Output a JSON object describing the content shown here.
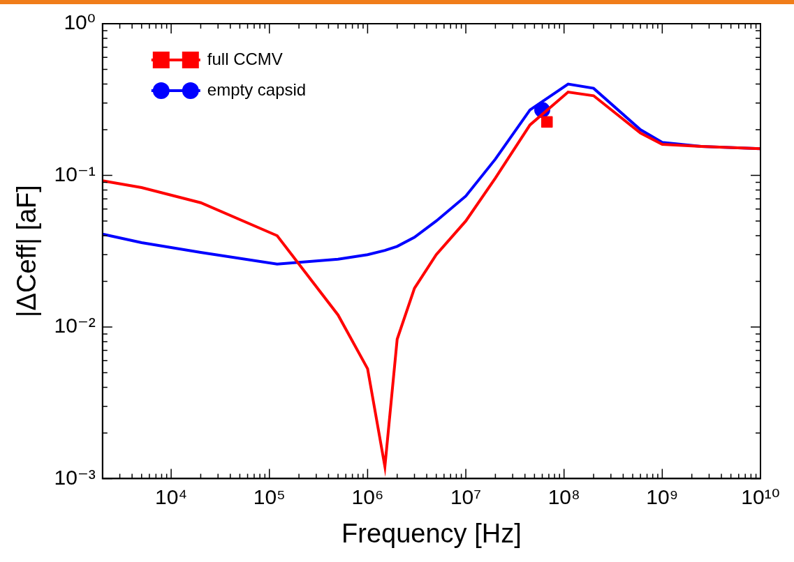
{
  "chart_data": {
    "type": "line",
    "x_label": "Frequency [Hz]",
    "y_label": "|ΔCeff| [aF]",
    "log": true,
    "grid": false,
    "legend": "upper left",
    "xlim": [
      2000,
      10000000000
    ],
    "ylim": [
      0.001,
      1
    ],
    "xticks": [
      {
        "value": 10000,
        "label": "10⁴"
      },
      {
        "value": 100000,
        "label": "10⁵"
      },
      {
        "value": 1000000,
        "label": "10⁶"
      },
      {
        "value": 10000000,
        "label": "10⁷"
      },
      {
        "value": 100000000,
        "label": "10⁸"
      },
      {
        "value": 1000000000,
        "label": "10⁹"
      },
      {
        "value": 10000000000,
        "label": "10¹⁰"
      }
    ],
    "yticks": [
      {
        "value": 0.001,
        "label": "10⁻³"
      },
      {
        "value": 0.01,
        "label": "10⁻²"
      },
      {
        "value": 0.1,
        "label": "10⁻¹"
      },
      {
        "value": 1,
        "label": "10⁰"
      }
    ],
    "x": [
      2000,
      5000,
      20000,
      120000,
      500000,
      1000000,
      1500000,
      2000000,
      3000000,
      5000000,
      10000000,
      20000000,
      45000000,
      110000000,
      200000000,
      600000000,
      1000000000,
      2500000000,
      10000000000
    ],
    "series": [
      {
        "name": "full CCMV",
        "color": "#ff0000",
        "marker": "square",
        "values": [
          0.092,
          0.083,
          0.066,
          0.04,
          0.012,
          0.0053,
          0.0012,
          0.0083,
          0.018,
          0.03,
          0.05,
          0.096,
          0.215,
          0.354,
          0.335,
          0.19,
          0.16,
          0.155,
          0.15
        ],
        "marker_point": {
          "x": 67000000,
          "y": 0.225
        }
      },
      {
        "name": "empty capsid",
        "color": "#0000ff",
        "marker": "circle",
        "values": [
          0.041,
          0.036,
          0.031,
          0.026,
          0.028,
          0.03,
          0.032,
          0.034,
          0.039,
          0.05,
          0.073,
          0.128,
          0.27,
          0.4,
          0.375,
          0.2,
          0.165,
          0.155,
          0.15
        ],
        "marker_point": {
          "x": 60000000,
          "y": 0.27
        }
      }
    ]
  }
}
